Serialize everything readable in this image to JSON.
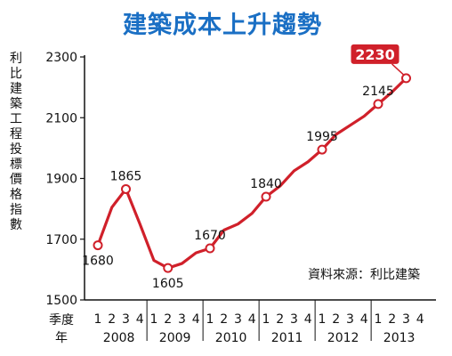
{
  "chart_data": {
    "type": "line",
    "title": "建築成本上升趨勢",
    "ylabel": "利比建築工程投標價格指數",
    "xlabel_header_top": "季度",
    "xlabel_header_bottom": "年",
    "source": "資料來源：利比建築",
    "ylim": [
      1500,
      2300
    ],
    "yticks": [
      1500,
      1700,
      1900,
      2100,
      2300
    ],
    "quarters": [
      "1",
      "2",
      "3",
      "4"
    ],
    "years": [
      "2008",
      "2009",
      "2010",
      "2011",
      "2012",
      "2013"
    ],
    "grid": false,
    "line_color": "#d0202a",
    "highlight_color": "#d0202a",
    "series": [
      {
        "values": [
          1680,
          1805,
          1865,
          1750,
          1630,
          1605,
          1620,
          1655,
          1670,
          1730,
          1750,
          1785,
          1840,
          1875,
          1925,
          1955,
          1995,
          2045,
          2075,
          2105,
          2145,
          2185,
          2230
        ]
      }
    ],
    "labeled_points": [
      {
        "index": 0,
        "label": "1680",
        "pos": "below"
      },
      {
        "index": 2,
        "label": "1865",
        "pos": "above"
      },
      {
        "index": 5,
        "label": "1605",
        "pos": "below"
      },
      {
        "index": 8,
        "label": "1670",
        "pos": "above"
      },
      {
        "index": 12,
        "label": "1840",
        "pos": "above"
      },
      {
        "index": 16,
        "label": "1995",
        "pos": "above"
      },
      {
        "index": 20,
        "label": "2145",
        "pos": "above"
      },
      {
        "index": 22,
        "label": "2230",
        "pos": "highlight"
      }
    ]
  }
}
